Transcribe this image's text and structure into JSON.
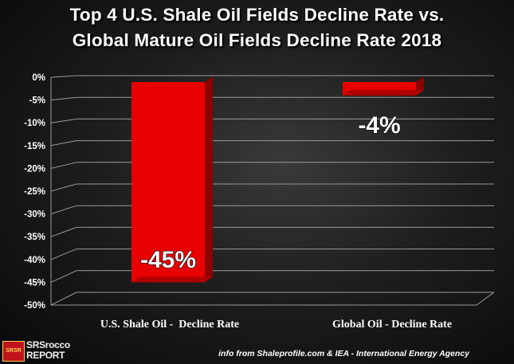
{
  "title_line1": "Top 4 U.S. Shale Oil Fields Decline Rate vs.",
  "title_line2": "Global Mature Oil Fields Decline Rate 2018",
  "source_note": "info from Shaleprofile.com & IEA - International Energy Agency",
  "logo": {
    "line1": "SRSrocco",
    "line2": "REPORT",
    "badge": "SRSR"
  },
  "colors": {
    "bar": "#e80000",
    "bar_dark": "#8c0000",
    "axis_text": "#ffffff",
    "grid": "#9a9a9a"
  },
  "chart_data": {
    "type": "bar",
    "title": "Top 4 U.S. Shale Oil Fields Decline Rate vs. Global Mature Oil Fields Decline Rate 2018",
    "categories": [
      "U.S. Shale Oil -  Decline Rate",
      "Global Oil - Decline Rate"
    ],
    "values": [
      -45,
      -4
    ],
    "data_labels": [
      "-45%",
      "-4%"
    ],
    "ylim": [
      -50,
      0
    ],
    "y_ticks": [
      0,
      -5,
      -10,
      -15,
      -20,
      -25,
      -30,
      -35,
      -40,
      -45,
      -50
    ],
    "y_tick_labels": [
      "0%",
      "-5%",
      "-10%",
      "-15%",
      "-20%",
      "-25%",
      "-30%",
      "-35%",
      "-40%",
      "-45%",
      "-50%"
    ],
    "xlabel": "",
    "ylabel": "",
    "grid": true,
    "legend": "none"
  }
}
